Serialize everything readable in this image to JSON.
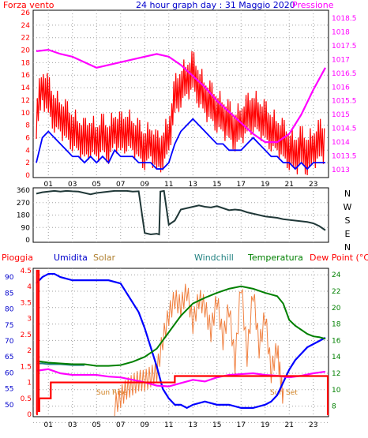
{
  "chart_data": [
    {
      "type": "line",
      "title": "24 hour graph day : 31 Maggio 2020",
      "x_ticks": [
        "01",
        "03",
        "05",
        "07",
        "09",
        "11",
        "13",
        "15",
        "17",
        "19",
        "21",
        "23"
      ],
      "left_axis": {
        "label": "Forza vento",
        "ticks": [
          "0",
          "2",
          "4",
          "6",
          "8",
          "10",
          "12",
          "14",
          "16",
          "18",
          "20",
          "22",
          "24",
          "26"
        ],
        "ylim": [
          0,
          26
        ]
      },
      "right_axis": {
        "label": "Pressione",
        "ticks": [
          "1013",
          "1013.5",
          "1014",
          "1014.5",
          "1015",
          "1015.5",
          "1016",
          "1016.5",
          "1017",
          "1017.5",
          "1018",
          "1018.5"
        ],
        "ylim": [
          1012.8,
          1018.7
        ]
      },
      "series": [
        {
          "name": "Forza vento",
          "axis": "left",
          "color": "#ff0000",
          "x": [
            0,
            0.5,
            1,
            1.5,
            2,
            2.5,
            3,
            3.5,
            4,
            4.5,
            5,
            5.5,
            6,
            6.5,
            7,
            7.5,
            8,
            8.5,
            9,
            9.5,
            10,
            10.5,
            11,
            11.5,
            12,
            12.5,
            13,
            13.5,
            14,
            14.5,
            15,
            15.5,
            16,
            16.5,
            17,
            17.5,
            18,
            18.5,
            19,
            19.5,
            20,
            20.5,
            21,
            21.5,
            22,
            22.5,
            23,
            23.5,
            24
          ],
          "values": [
            9,
            14,
            12,
            10,
            9,
            8,
            7,
            6,
            5,
            6,
            5,
            6,
            5,
            7,
            6,
            7,
            6,
            5,
            4,
            5,
            3,
            4,
            6,
            12,
            14,
            15,
            16,
            14,
            12,
            11,
            10,
            9,
            8,
            7,
            8,
            9,
            10,
            9,
            8,
            7,
            6,
            5,
            4,
            3,
            4,
            3,
            4,
            5,
            5
          ]
        },
        {
          "name": "",
          "axis": "left",
          "color": "#0000ff",
          "x": [
            0,
            0.5,
            1,
            1.5,
            2,
            2.5,
            3,
            3.5,
            4,
            4.5,
            5,
            5.5,
            6,
            6.5,
            7,
            7.5,
            8,
            8.5,
            9,
            9.5,
            10,
            10.5,
            11,
            11.5,
            12,
            12.5,
            13,
            13.5,
            14,
            14.5,
            15,
            15.5,
            16,
            16.5,
            17,
            17.5,
            18,
            18.5,
            19,
            19.5,
            20,
            20.5,
            21,
            21.5,
            22,
            22.5,
            23,
            23.5,
            24
          ],
          "values": [
            2,
            6,
            7,
            6,
            5,
            4,
            3,
            3,
            2,
            3,
            2,
            3,
            2,
            4,
            3,
            3,
            3,
            2,
            2,
            2,
            1,
            1,
            2,
            5,
            7,
            8,
            9,
            8,
            7,
            6,
            5,
            5,
            4,
            4,
            4,
            5,
            6,
            5,
            4,
            3,
            3,
            2,
            2,
            1,
            2,
            1,
            2,
            2,
            2
          ]
        },
        {
          "name": "Pressione",
          "axis": "right",
          "color": "#ff00ff",
          "x": [
            0,
            1,
            2,
            3,
            4,
            5,
            6,
            7,
            8,
            9,
            10,
            11,
            12,
            13,
            14,
            15,
            16,
            17,
            18,
            19,
            20,
            21,
            22,
            23,
            24
          ],
          "values": [
            1017.3,
            1017.35,
            1017.2,
            1017.1,
            1016.9,
            1016.7,
            1016.8,
            1016.9,
            1017.0,
            1017.1,
            1017.2,
            1017.1,
            1016.8,
            1016.4,
            1016.0,
            1015.5,
            1015.1,
            1014.7,
            1014.3,
            1014.0,
            1014.0,
            1014.3,
            1015.0,
            1015.9,
            1016.7
          ]
        }
      ]
    },
    {
      "type": "line",
      "right_labels": [
        "N",
        "W",
        "S",
        "E",
        "N"
      ],
      "left_axis": {
        "ticks": [
          "0",
          "90",
          "180",
          "270",
          "360"
        ],
        "ylim": [
          0,
          360
        ]
      },
      "series": [
        {
          "name": "",
          "color": "#203838",
          "x": [
            0,
            0.5,
            1,
            1.5,
            2,
            2.5,
            3,
            3.5,
            4,
            4.5,
            5,
            5.5,
            6,
            6.5,
            7,
            7.5,
            8,
            8.5,
            9,
            9.5,
            10,
            10.2,
            10.3,
            10.6,
            11,
            11.5,
            12,
            12.5,
            13,
            13.5,
            14,
            14.5,
            15,
            15.5,
            16,
            16.5,
            17,
            17.5,
            18,
            18.5,
            19,
            19.5,
            20,
            20.5,
            21,
            21.5,
            22,
            22.5,
            23,
            23.5,
            24
          ],
          "values": [
            335,
            345,
            350,
            355,
            350,
            355,
            352,
            350,
            340,
            330,
            340,
            345,
            350,
            355,
            355,
            355,
            350,
            352,
            50,
            40,
            45,
            40,
            350,
            355,
            110,
            140,
            220,
            230,
            240,
            250,
            240,
            235,
            245,
            230,
            215,
            220,
            215,
            200,
            190,
            180,
            170,
            165,
            160,
            150,
            145,
            140,
            135,
            130,
            120,
            100,
            70
          ]
        }
      ]
    },
    {
      "type": "line",
      "headers": [
        {
          "text": "Pioggia",
          "color": "#ff0000"
        },
        {
          "text": "Umidita",
          "color": "#0000cc"
        },
        {
          "text": "Solar",
          "color": "#b08030"
        },
        {
          "text": "Windchill",
          "color": "#208080"
        },
        {
          "text": "Temperatura",
          "color": "#008000"
        },
        {
          "text": "Dew Point (°C)",
          "color": "#ff0000"
        }
      ],
      "rain_axis": {
        "ticks": [
          "0",
          "0.5",
          "1",
          "1.5",
          "2",
          "2.5",
          "3",
          "3.5",
          "4",
          "4.5"
        ],
        "ylim": [
          0,
          4.5
        ]
      },
      "humidity_axis": {
        "ticks": [
          "50",
          "55",
          "60",
          "65",
          "70",
          "75",
          "80",
          "85",
          "90"
        ],
        "ylim": [
          47,
          92
        ]
      },
      "temp_axis": {
        "ticks": [
          "8",
          "10",
          "12",
          "14",
          "16",
          "18",
          "20",
          "22",
          "24"
        ],
        "ylim": [
          7,
          24.5
        ]
      },
      "annotations": [
        "Sun Rise",
        "Sun Set"
      ],
      "x_ticks": [
        "01",
        "03",
        "05",
        "07",
        "09",
        "11",
        "13",
        "15",
        "17",
        "19",
        "21",
        "23"
      ],
      "series": [
        {
          "name": "Umidita",
          "axis": "humidity",
          "color": "#0000ff",
          "x": [
            0,
            0.5,
            1,
            1.5,
            2,
            3,
            4,
            5,
            6,
            7,
            7.5,
            8,
            8.5,
            9,
            9.5,
            10,
            10.5,
            11,
            11.5,
            12,
            12.5,
            13,
            14,
            15,
            16,
            17,
            18,
            19,
            19.5,
            20,
            20.5,
            21,
            21.5,
            22,
            22.5,
            23,
            23.5,
            24
          ],
          "values": [
            88,
            90,
            91,
            91,
            90,
            89,
            89,
            89,
            89,
            88,
            85,
            82,
            79,
            74,
            68,
            62,
            55,
            52,
            50,
            50,
            49,
            50,
            51,
            50,
            50,
            49,
            49,
            50,
            51,
            53,
            57,
            61,
            64,
            66,
            68,
            69,
            70,
            71
          ]
        },
        {
          "name": "Solar",
          "axis": "temp",
          "color": "#f08040",
          "x": [
            6.5,
            7,
            7.5,
            8,
            8.5,
            9,
            9.5,
            10,
            10.5,
            11,
            11.5,
            12,
            12.5,
            13,
            13.5,
            14,
            14.5,
            15,
            15.5,
            16,
            16.5,
            17,
            17.5,
            18,
            18.5,
            19,
            19.5,
            20,
            20.3,
            20.6
          ],
          "values": [
            8,
            9,
            10,
            10.5,
            11,
            11,
            11.5,
            12,
            16,
            19,
            21,
            20,
            22,
            18,
            21,
            20,
            17,
            21,
            16,
            20,
            13,
            23,
            14,
            22,
            15,
            19,
            12,
            15,
            11,
            8
          ]
        },
        {
          "name": "Windchill",
          "axis": "temp",
          "color": "#208080",
          "x": [
            0,
            0.5,
            1,
            2,
            3,
            4
          ],
          "values": [
            13.2,
            13.2,
            13.1,
            13.1,
            13.0,
            13.0
          ]
        },
        {
          "name": "Temperatura",
          "axis": "temp",
          "color": "#008000",
          "x": [
            0,
            1,
            2,
            3,
            4,
            5,
            6,
            7,
            8,
            9,
            10,
            11,
            12,
            13,
            14,
            15,
            16,
            17,
            18,
            19,
            20,
            20.5,
            21,
            21.5,
            22,
            22.5,
            23,
            23.5,
            24
          ],
          "values": [
            13.5,
            13.3,
            13.2,
            13.1,
            13.1,
            12.9,
            12.9,
            13.0,
            13.4,
            14.0,
            15.0,
            17.0,
            19.0,
            20.5,
            21.2,
            21.8,
            22.3,
            22.6,
            22.3,
            21.8,
            21.4,
            20.5,
            18.5,
            17.8,
            17.3,
            16.8,
            16.5,
            16.4,
            16.2
          ]
        },
        {
          "name": "Dew Point",
          "axis": "temp",
          "color": "#ff00ff",
          "x": [
            0,
            1,
            2,
            3,
            4,
            5,
            6,
            7,
            8,
            9,
            10,
            11,
            12,
            13,
            14,
            15,
            16,
            17,
            18,
            19,
            20,
            21,
            22,
            23,
            24
          ],
          "values": [
            12.3,
            12.5,
            12.0,
            11.8,
            11.8,
            11.8,
            11.6,
            11.5,
            11.2,
            10.9,
            10.5,
            10.4,
            10.8,
            11.2,
            11.0,
            11.5,
            11.8,
            11.9,
            12.0,
            11.8,
            11.7,
            11.5,
            11.7,
            12.0,
            12.2
          ]
        },
        {
          "name": "Pioggia",
          "axis": "rain",
          "color": "#ff0000",
          "x": [
            0,
            0.05,
            0.1,
            0.2,
            0.25,
            1,
            1.2,
            10.5,
            10.6,
            11,
            11.5,
            12,
            20.5,
            20.8,
            21,
            24,
            24.2,
            24.3
          ],
          "values": [
            0,
            4.5,
            4.5,
            0.1,
            0.5,
            0.5,
            1.0,
            1.0,
            1.0,
            1.0,
            1.2,
            1.2,
            1.2,
            1.2,
            1.2,
            1.2,
            0,
            0
          ]
        }
      ]
    }
  ]
}
